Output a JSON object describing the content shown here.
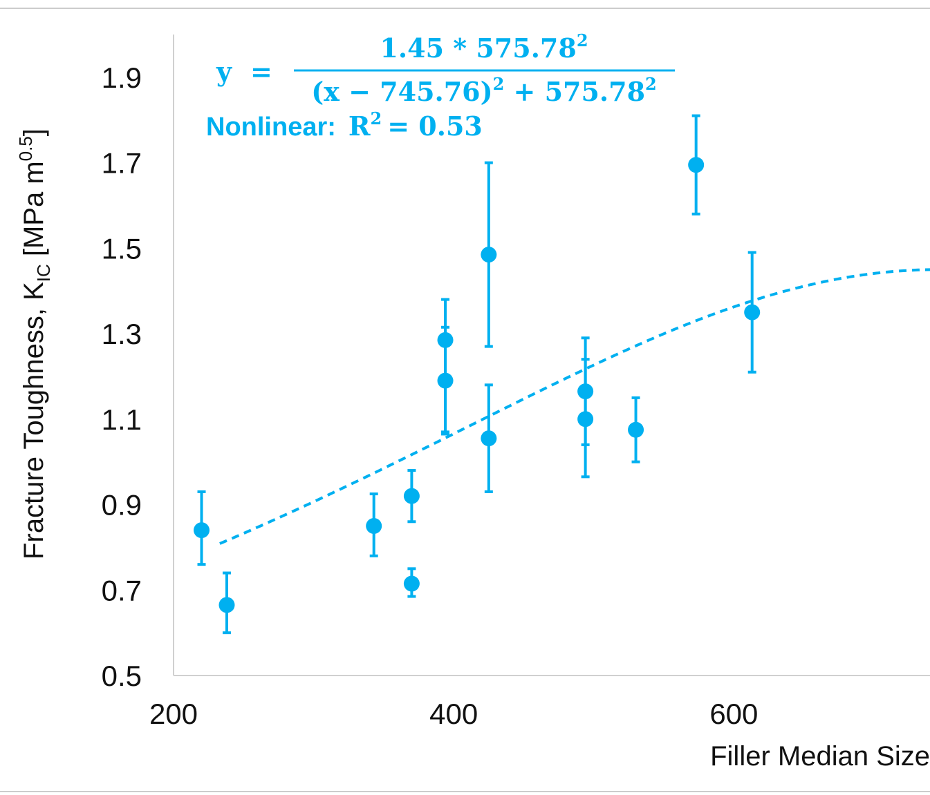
{
  "chart_data": {
    "type": "scatter",
    "xlabel": "Filler Median Size",
    "ylabel_main": "Fracture Toughness, K",
    "ylabel_sub": "IC",
    "ylabel_unit_pre": " [MPa m",
    "ylabel_unit_sup": "0.5",
    "ylabel_unit_post": "]",
    "xlim": [
      200,
      740
    ],
    "ylim": [
      0.5,
      2.0
    ],
    "xticks": [
      "200",
      "400",
      "600"
    ],
    "yticks": [
      "0.5",
      "0.7",
      "0.9",
      "1.1",
      "1.3",
      "1.5",
      "1.7",
      "1.9"
    ],
    "grid": false,
    "color": "#00b0f0",
    "points": [
      {
        "x": 220,
        "y": 0.84,
        "err_low": 0.76,
        "err_high": 0.93
      },
      {
        "x": 238,
        "y": 0.665,
        "err_low": 0.6,
        "err_high": 0.74
      },
      {
        "x": 343,
        "y": 0.85,
        "err_low": 0.78,
        "err_high": 0.925
      },
      {
        "x": 370,
        "y": 0.92,
        "err_low": 0.86,
        "err_high": 0.98
      },
      {
        "x": 370,
        "y": 0.715,
        "err_low": 0.685,
        "err_high": 0.75
      },
      {
        "x": 394,
        "y": 1.285,
        "err_low": 1.065,
        "err_high": 1.38
      },
      {
        "x": 394,
        "y": 1.19,
        "err_low": 1.07,
        "err_high": 1.315
      },
      {
        "x": 425,
        "y": 1.485,
        "err_low": 1.27,
        "err_high": 1.7
      },
      {
        "x": 425,
        "y": 1.055,
        "err_low": 0.93,
        "err_high": 1.18
      },
      {
        "x": 494,
        "y": 1.165,
        "err_low": 1.04,
        "err_high": 1.29
      },
      {
        "x": 494,
        "y": 1.1,
        "err_low": 0.965,
        "err_high": 1.24
      },
      {
        "x": 530,
        "y": 1.075,
        "err_low": 1.0,
        "err_high": 1.15
      },
      {
        "x": 573,
        "y": 1.695,
        "err_low": 1.58,
        "err_high": 1.81
      },
      {
        "x": 613,
        "y": 1.35,
        "err_low": 1.21,
        "err_high": 1.49
      }
    ],
    "fit": {
      "A": 1.45,
      "x0": 745.76,
      "w": 575.78,
      "x_start": 233,
      "x_end": 740
    }
  },
  "equation": {
    "y_label": "y",
    "equals": "=",
    "numerator_base": "1.45 * 575.78",
    "numerator_exp": "2",
    "denominator_a": "(x − 745.76)",
    "denominator_a_exp": "2",
    "denominator_b": " + 575.78",
    "denominator_b_exp": "2",
    "r2_prefix": "Nonlinear:",
    "r2_var": "R",
    "r2_exp": "2",
    "r2_value": "= 0.53"
  }
}
